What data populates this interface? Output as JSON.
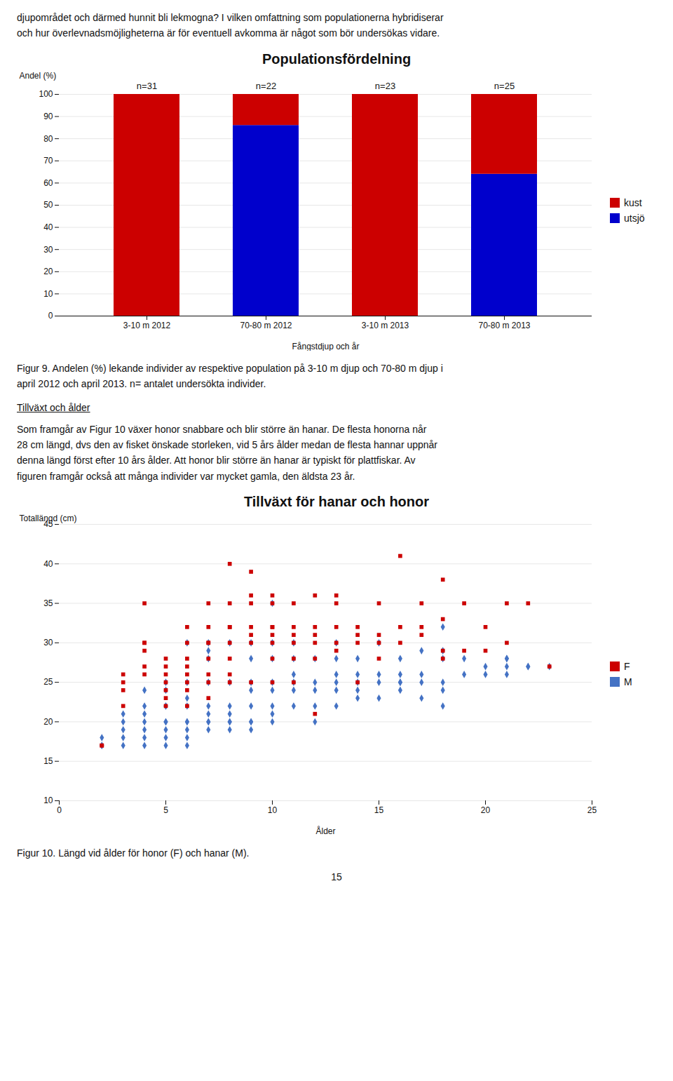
{
  "text_top": [
    "djupområdet och därmed hunnit bli lekmogna? I vilken omfattning som populationerna hybridiserar",
    "och hur överlevnadsmöjligheterna är för eventuell avkomma är något som bör undersökas vidare."
  ],
  "chart_data": [
    {
      "type": "bar",
      "stacked": true,
      "title": "Populationsfördelning",
      "xlabel": "Fångstdjup och år",
      "ylabel": "Andel (%)",
      "categories": [
        "3-10 m 2012",
        "70-80 m 2012",
        "3-10 m 2013",
        "70-80 m 2013"
      ],
      "series": [
        {
          "name": "utsjö",
          "color": "#0000CC",
          "values": [
            0,
            86,
            0,
            64
          ]
        },
        {
          "name": "kust",
          "color": "#CC0000",
          "values": [
            100,
            14,
            100,
            36
          ]
        }
      ],
      "annotations": [
        "n=31",
        "n=22",
        "n=23",
        "n=25"
      ],
      "ylim": [
        0,
        100
      ],
      "yticks": [
        0,
        10,
        20,
        30,
        40,
        50,
        60,
        70,
        80,
        90,
        100
      ],
      "grid": "y",
      "legend": "right",
      "caption": [
        "Figur 9. Andelen (%) lekande individer av respektive population på 3-10 m djup och 70-80 m djup i",
        "april 2012 och april 2013. n= antalet undersökta individer."
      ]
    },
    {
      "type": "scatter",
      "title": "Tillväxt för hanar och honor",
      "xlabel": "Ålder",
      "ylabel": "Totallängd (cm)",
      "series": [
        {
          "name": "M",
          "color": "#4472C4",
          "marker": "diamond",
          "x": [
            2,
            2,
            2,
            3,
            3,
            3,
            3,
            3,
            4,
            4,
            4,
            4,
            4,
            4,
            4,
            5,
            5,
            5,
            5,
            5,
            5,
            5,
            5,
            5,
            6,
            6,
            6,
            6,
            6,
            6,
            6,
            6,
            6,
            7,
            7,
            7,
            7,
            7,
            7,
            7,
            7,
            7,
            8,
            8,
            8,
            8,
            8,
            8,
            8,
            9,
            9,
            9,
            9,
            9,
            9,
            9,
            9,
            10,
            10,
            10,
            10,
            10,
            10,
            10,
            10,
            11,
            11,
            11,
            11,
            11,
            11,
            12,
            12,
            12,
            12,
            12,
            13,
            13,
            13,
            13,
            13,
            13,
            14,
            14,
            14,
            14,
            14,
            15,
            15,
            15,
            15,
            16,
            16,
            16,
            16,
            16,
            17,
            17,
            17,
            17,
            18,
            18,
            18,
            18,
            18,
            18,
            19,
            19,
            20,
            20,
            21,
            21,
            21,
            21,
            22,
            22,
            23
          ],
          "values": [
            17,
            17,
            18,
            17,
            18,
            19,
            20,
            21,
            17,
            18,
            19,
            20,
            21,
            22,
            24,
            17,
            18,
            19,
            20,
            20,
            22,
            22,
            24,
            25,
            17,
            18,
            19,
            20,
            20,
            22,
            23,
            25,
            30,
            19,
            20,
            20,
            21,
            22,
            25,
            28,
            29,
            30,
            19,
            20,
            20,
            21,
            22,
            25,
            30,
            19,
            20,
            20,
            22,
            24,
            25,
            28,
            30,
            20,
            21,
            22,
            24,
            25,
            28,
            30,
            35,
            22,
            24,
            25,
            26,
            28,
            30,
            20,
            22,
            24,
            25,
            28,
            22,
            24,
            25,
            26,
            28,
            30,
            23,
            24,
            25,
            26,
            28,
            23,
            25,
            26,
            30,
            24,
            25,
            25,
            26,
            28,
            23,
            25,
            26,
            29,
            22,
            24,
            25,
            28,
            29,
            32,
            26,
            28,
            26,
            27,
            26,
            27,
            28,
            28,
            27,
            27,
            27
          ]
        },
        {
          "name": "F",
          "color": "#CC0000",
          "marker": "square",
          "x": [
            2,
            2,
            3,
            3,
            3,
            3,
            4,
            4,
            4,
            4,
            4,
            4,
            5,
            5,
            5,
            5,
            5,
            5,
            5,
            6,
            6,
            6,
            6,
            6,
            6,
            6,
            6,
            7,
            7,
            7,
            7,
            7,
            7,
            7,
            7,
            8,
            8,
            8,
            8,
            8,
            8,
            8,
            8,
            9,
            9,
            9,
            9,
            9,
            9,
            9,
            10,
            10,
            10,
            10,
            10,
            10,
            10,
            10,
            11,
            11,
            11,
            11,
            11,
            11,
            12,
            12,
            12,
            12,
            12,
            12,
            13,
            13,
            13,
            13,
            13,
            14,
            14,
            14,
            14,
            15,
            15,
            15,
            15,
            16,
            16,
            16,
            17,
            17,
            17,
            18,
            18,
            18,
            18,
            19,
            19,
            20,
            20,
            21,
            21,
            22,
            23
          ],
          "values": [
            17,
            17,
            22,
            24,
            25,
            26,
            26,
            27,
            29,
            30,
            30,
            35,
            22,
            23,
            24,
            25,
            26,
            27,
            28,
            22,
            24,
            25,
            26,
            27,
            28,
            30,
            32,
            23,
            25,
            26,
            28,
            30,
            30,
            32,
            35,
            25,
            26,
            28,
            30,
            32,
            32,
            35,
            40,
            25,
            30,
            31,
            32,
            35,
            36,
            39,
            25,
            28,
            30,
            31,
            32,
            32,
            35,
            36,
            25,
            28,
            30,
            31,
            32,
            35,
            21,
            28,
            30,
            31,
            32,
            36,
            29,
            30,
            32,
            35,
            36,
            25,
            30,
            31,
            32,
            28,
            30,
            31,
            35,
            30,
            32,
            41,
            31,
            32,
            35,
            28,
            29,
            33,
            38,
            29,
            35,
            29,
            32,
            30,
            35,
            35,
            27
          ]
        }
      ],
      "xlim": [
        0,
        25
      ],
      "ylim": [
        10,
        45
      ],
      "xticks": [
        0,
        5,
        10,
        15,
        20,
        25
      ],
      "yticks": [
        10,
        15,
        20,
        25,
        30,
        35,
        40,
        45
      ],
      "grid": "y",
      "legend": "right",
      "caption": [
        "Figur 10. Längd vid ålder för honor (F) och hanar (M)."
      ]
    }
  ],
  "section_header": "Tillväxt och ålder",
  "body_text": [
    "Som framgår av Figur 10 växer honor snabbare och blir större än hanar. De flesta honorna når",
    "28 cm längd, dvs den av fisket önskade storleken, vid 5 års ålder medan de flesta hannar uppnår",
    "denna längd först efter 10 års ålder. Att honor blir större än hanar är typiskt för plattfiskar. Av",
    "figuren framgår också att många individer var mycket gamla, den äldsta 23 år."
  ],
  "page_number": "15"
}
